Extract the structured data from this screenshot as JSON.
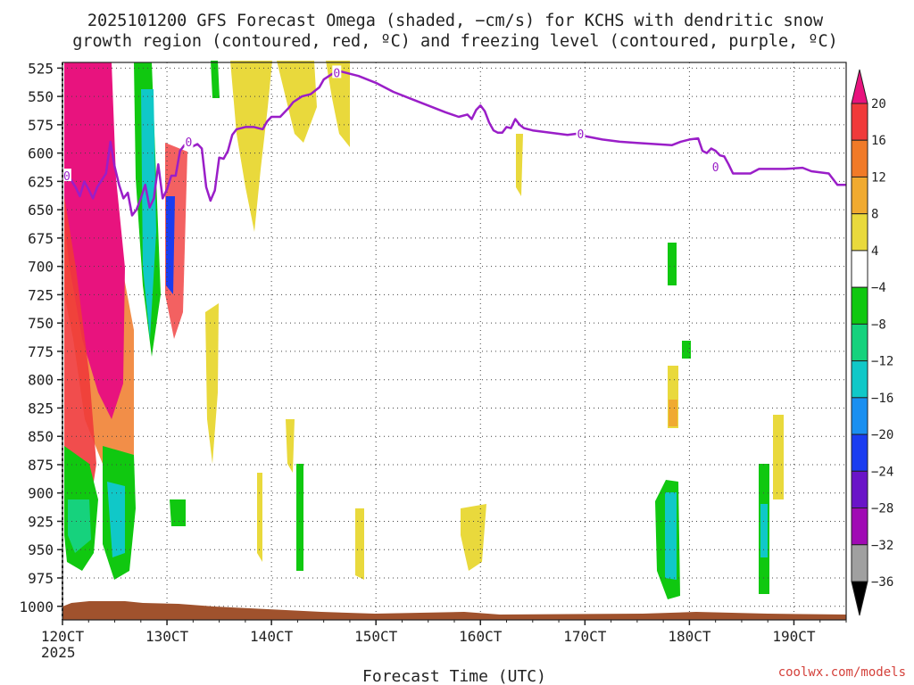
{
  "chart_data": {
    "type": "heatmap",
    "title_lines": [
      "2025101200 GFS Forecast Omega (shaded, −cm/s) for KCHS with dendritic snow",
      "growth region (contoured, red, ºC) and freezing level (contoured, purple, ºC)"
    ],
    "xlabel": "Forecast Time (UTC)",
    "x_start_year": "2025",
    "x_ticks": [
      "120CT",
      "130CT",
      "140CT",
      "150CT",
      "160CT",
      "170CT",
      "180CT",
      "190CT"
    ],
    "x_tick_hours": [
      0,
      24,
      48,
      72,
      96,
      120,
      144,
      168
    ],
    "x_range_hours": [
      0,
      180
    ],
    "y_ticks": [
      525,
      550,
      575,
      600,
      625,
      650,
      675,
      700,
      725,
      750,
      775,
      800,
      825,
      850,
      875,
      900,
      925,
      950,
      975,
      1000
    ],
    "ylim": [
      1012,
      520
    ],
    "grid": true,
    "colorbar": {
      "labels": [
        "20",
        "16",
        "12",
        "8",
        "4",
        "−4",
        "−8",
        "−12",
        "−16",
        "−20",
        "−24",
        "−28",
        "−32",
        "−36"
      ],
      "colors": [
        "#e8137e",
        "#f03a3a",
        "#f07a28",
        "#f0aa30",
        "#e9d93c",
        "#ffffff",
        "#10c810",
        "#16d27d",
        "#10c8c8",
        "#1a8ff0",
        "#1a3cf0",
        "#6a14c8",
        "#a00ab4",
        "#a0a0a0",
        "#000000"
      ]
    },
    "freezing_level": {
      "label": "0",
      "color": "#9a1ec8",
      "label_hours": [
        [
          1,
          620
        ],
        [
          29,
          590
        ],
        [
          63,
          529
        ],
        [
          119,
          583
        ],
        [
          150,
          612
        ]
      ],
      "points": [
        [
          0,
          620
        ],
        [
          1,
          618
        ],
        [
          3,
          630
        ],
        [
          4,
          638
        ],
        [
          5,
          625
        ],
        [
          6,
          632
        ],
        [
          7,
          640
        ],
        [
          8,
          630
        ],
        [
          10,
          618
        ],
        [
          11,
          590
        ],
        [
          12,
          612
        ],
        [
          13,
          628
        ],
        [
          14,
          640
        ],
        [
          15,
          635
        ],
        [
          16,
          655
        ],
        [
          17,
          650
        ],
        [
          18,
          640
        ],
        [
          19,
          628
        ],
        [
          20,
          648
        ],
        [
          21,
          640
        ],
        [
          22,
          610
        ],
        [
          23,
          640
        ],
        [
          24,
          632
        ],
        [
          25,
          620
        ],
        [
          26,
          620
        ],
        [
          27,
          598
        ],
        [
          28,
          593
        ],
        [
          29,
          591
        ],
        [
          30,
          594
        ],
        [
          31,
          592
        ],
        [
          32,
          596
        ],
        [
          33,
          630
        ],
        [
          34,
          642
        ],
        [
          35,
          633
        ],
        [
          36,
          604
        ],
        [
          37,
          605
        ],
        [
          38,
          598
        ],
        [
          39,
          584
        ],
        [
          40,
          579
        ],
        [
          42,
          577
        ],
        [
          44,
          577
        ],
        [
          46,
          579
        ],
        [
          47,
          572
        ],
        [
          48,
          568
        ],
        [
          50,
          568
        ],
        [
          52,
          560
        ],
        [
          53,
          555
        ],
        [
          55,
          550
        ],
        [
          57,
          548
        ],
        [
          59,
          542
        ],
        [
          60,
          535
        ],
        [
          62,
          530
        ],
        [
          64,
          528
        ],
        [
          66,
          530
        ],
        [
          68,
          532
        ],
        [
          72,
          538
        ],
        [
          76,
          546
        ],
        [
          80,
          552
        ],
        [
          84,
          558
        ],
        [
          88,
          564
        ],
        [
          91,
          568
        ],
        [
          93,
          566
        ],
        [
          94,
          570
        ],
        [
          95,
          562
        ],
        [
          96,
          558
        ],
        [
          97,
          563
        ],
        [
          98,
          573
        ],
        [
          99,
          580
        ],
        [
          100,
          582
        ],
        [
          101,
          582
        ],
        [
          102,
          577
        ],
        [
          103,
          578
        ],
        [
          104,
          570
        ],
        [
          105,
          575
        ],
        [
          106,
          578
        ],
        [
          108,
          580
        ],
        [
          112,
          582
        ],
        [
          116,
          584
        ],
        [
          118,
          583
        ],
        [
          120,
          585
        ],
        [
          124,
          588
        ],
        [
          128,
          590
        ],
        [
          132,
          591
        ],
        [
          136,
          592
        ],
        [
          140,
          593
        ],
        [
          142,
          590
        ],
        [
          144,
          588
        ],
        [
          146,
          587
        ],
        [
          147,
          598
        ],
        [
          148,
          600
        ],
        [
          149,
          596
        ],
        [
          150,
          598
        ],
        [
          151,
          602
        ],
        [
          152,
          603
        ],
        [
          153,
          610
        ],
        [
          154,
          618
        ],
        [
          158,
          618
        ],
        [
          160,
          614
        ],
        [
          166,
          614
        ],
        [
          170,
          613
        ],
        [
          172,
          616
        ],
        [
          176,
          618
        ],
        [
          178,
          628
        ],
        [
          180,
          628
        ]
      ]
    },
    "ground_color": "#a0522d"
  }
}
